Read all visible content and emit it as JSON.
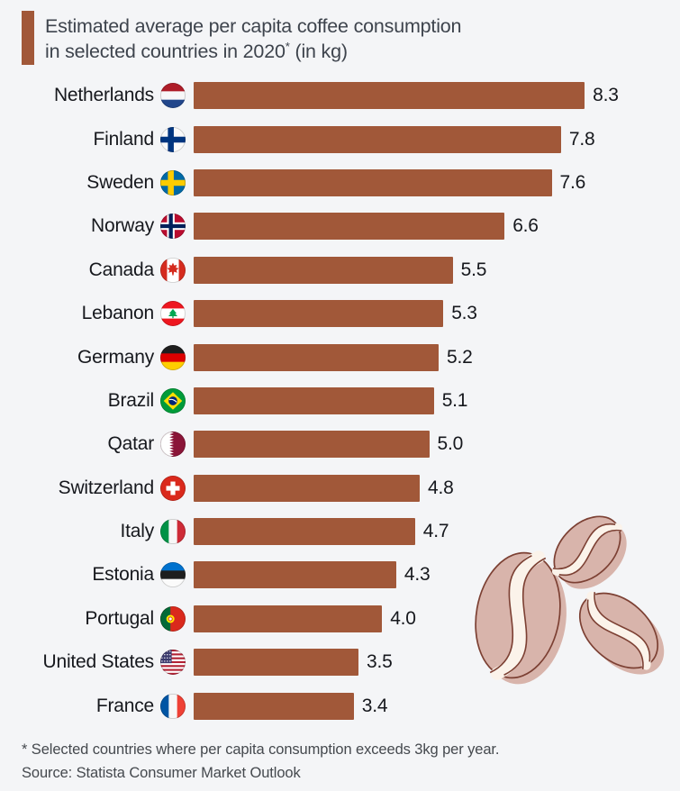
{
  "title": {
    "line1": "Estimated average per capita coffee consumption",
    "line2_pre": "in selected countries in 2020",
    "line2_sup": "*",
    "line2_post": " (in kg)"
  },
  "footnote": "* Selected countries where per capita consumption exceeds 3kg per year.",
  "source": "Source: Statista Consumer Market Outlook",
  "colors": {
    "background": "#F4F5F7",
    "bar": "#A15839",
    "accent_bar": "#A15839",
    "title_text": "#3E444D",
    "label_text": "#16181D",
    "footnote_text": "#45494E"
  },
  "chart_data": {
    "type": "bar",
    "orientation": "horizontal",
    "title": "Estimated average per capita coffee consumption in selected countries in 2020* (in kg)",
    "unit": "kg per capita per year",
    "xlim": [
      0,
      8.3
    ],
    "grid": false,
    "legend": false,
    "categories": [
      "Netherlands",
      "Finland",
      "Sweden",
      "Norway",
      "Canada",
      "Lebanon",
      "Germany",
      "Brazil",
      "Qatar",
      "Switzerland",
      "Italy",
      "Estonia",
      "Portugal",
      "United States",
      "France"
    ],
    "values": [
      8.3,
      7.8,
      7.6,
      6.6,
      5.5,
      5.3,
      5.2,
      5.1,
      5.0,
      4.8,
      4.7,
      4.3,
      4.0,
      3.5,
      3.4
    ],
    "rows": [
      {
        "country": "Netherlands",
        "value": 8.3,
        "flag": {
          "type": "h",
          "colors": [
            "#AE1C28",
            "#F7F7F7",
            "#21468B"
          ]
        }
      },
      {
        "country": "Finland",
        "value": 7.8,
        "flag": {
          "type": "nordic",
          "bg": "#FAFAFA",
          "cross": "#003580"
        }
      },
      {
        "country": "Sweden",
        "value": 7.6,
        "flag": {
          "type": "nordic",
          "bg": "#006AA7",
          "cross": "#FECC00"
        }
      },
      {
        "country": "Norway",
        "value": 6.6,
        "flag": {
          "type": "nordic",
          "bg": "#BA0C2F",
          "cross": "#FFFFFF",
          "inner": "#00205B"
        }
      },
      {
        "country": "Canada",
        "value": 5.5,
        "flag": {
          "type": "canada",
          "red": "#D52B1E",
          "white": "#FFFFFF"
        }
      },
      {
        "country": "Lebanon",
        "value": 5.3,
        "flag": {
          "type": "lebanon",
          "red": "#EE161F",
          "white": "#FFFFFF",
          "green": "#00A651"
        }
      },
      {
        "country": "Germany",
        "value": 5.2,
        "flag": {
          "type": "h",
          "colors": [
            "#1E1E1E",
            "#DD0000",
            "#FFCE00"
          ]
        }
      },
      {
        "country": "Brazil",
        "value": 5.1,
        "flag": {
          "type": "brazil",
          "green": "#009B3A",
          "yellow": "#FEDF00",
          "blue": "#002776",
          "white": "#FFFFFF"
        }
      },
      {
        "country": "Qatar",
        "value": 5.0,
        "flag": {
          "type": "qatar",
          "maroon": "#8A1538",
          "white": "#FFFFFF"
        }
      },
      {
        "country": "Switzerland",
        "value": 4.8,
        "flag": {
          "type": "swiss",
          "red": "#DA291C",
          "white": "#FFFFFF"
        }
      },
      {
        "country": "Italy",
        "value": 4.7,
        "flag": {
          "type": "v",
          "colors": [
            "#009246",
            "#F7F7F7",
            "#CE2B37"
          ]
        }
      },
      {
        "country": "Estonia",
        "value": 4.3,
        "flag": {
          "type": "h",
          "colors": [
            "#0072CE",
            "#1E1E1E",
            "#FBFBFB"
          ]
        }
      },
      {
        "country": "Portugal",
        "value": 4.0,
        "flag": {
          "type": "portugal",
          "green": "#046A38",
          "red": "#DA291C",
          "yellow": "#FFE900"
        }
      },
      {
        "country": "United States",
        "value": 3.5,
        "flag": {
          "type": "usa",
          "red": "#B22234",
          "white": "#FFFFFF",
          "blue": "#3C3B6E"
        }
      },
      {
        "country": "France",
        "value": 3.4,
        "flag": {
          "type": "v",
          "colors": [
            "#0055A4",
            "#F7F7F7",
            "#EF4135"
          ]
        }
      }
    ]
  },
  "decoration": {
    "name": "coffee-beans-illustration",
    "fill": "#D8B4AB",
    "outline": "#7C4033",
    "crease": "#FBF3EA"
  }
}
